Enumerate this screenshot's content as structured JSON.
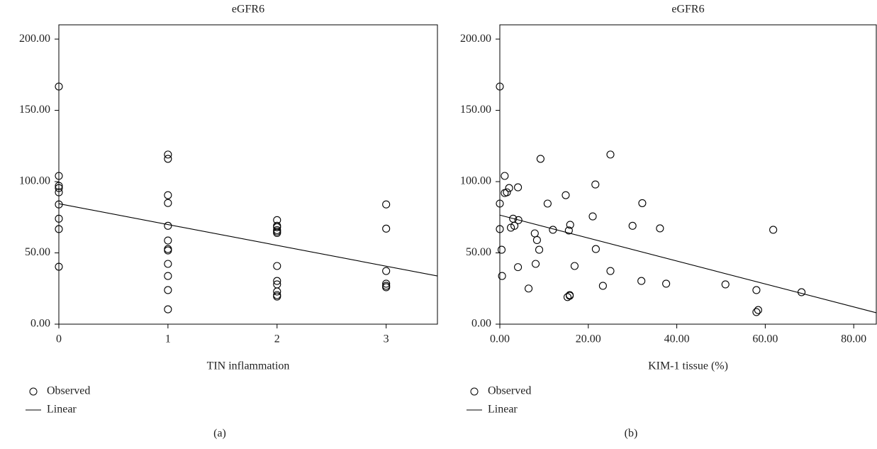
{
  "chart_data": [
    {
      "type": "scatter",
      "title": "eGFR6",
      "x_label": "TIN inflammation",
      "panel_label": "(a)",
      "xlim": [
        0,
        3.47
      ],
      "xticks": [
        0,
        1,
        2,
        3
      ],
      "ylim": [
        0,
        210
      ],
      "yticks": [
        {
          "value": 0,
          "label": "0.00"
        },
        {
          "value": 50,
          "label": "50.00"
        },
        {
          "value": 100,
          "label": "100.00"
        },
        {
          "value": 150,
          "label": "150.00"
        },
        {
          "value": 200,
          "label": "200.00"
        }
      ],
      "series": [
        {
          "name": "Observed",
          "color": "#000000",
          "x": [
            0,
            0,
            0,
            0,
            0,
            0,
            0,
            0,
            0,
            1,
            1,
            1,
            1,
            1,
            1,
            1,
            1,
            1,
            1,
            1,
            1,
            2,
            2,
            2,
            2,
            2,
            2,
            2,
            2,
            2,
            2,
            2,
            2,
            3,
            3,
            3,
            3,
            3,
            3
          ],
          "values": [
            166.7,
            104,
            97,
            95.5,
            92.5,
            84,
            74,
            66.7,
            40.3,
            119,
            116,
            90.5,
            85,
            69,
            58.7,
            52.7,
            51.7,
            42.3,
            33.8,
            23.9,
            10.4,
            73,
            69,
            68,
            66,
            65,
            64,
            40.8,
            30.3,
            27.9,
            22.9,
            20.4,
            19.4,
            84,
            67,
            37.3,
            28.4,
            26.9,
            25.9
          ]
        },
        {
          "name": "Linear",
          "color": "#000000",
          "x": [
            0,
            3.47
          ],
          "values": [
            84.5,
            33.8
          ]
        }
      ]
    },
    {
      "type": "scatter",
      "title": "eGFR6",
      "x_label": "KIM-1 tissue (%)",
      "panel_label": "(b)",
      "xlim": [
        0,
        85.1
      ],
      "xticks": [
        {
          "value": 0,
          "label": "0.00"
        },
        {
          "value": 20,
          "label": "20.00"
        },
        {
          "value": 40,
          "label": "40.00"
        },
        {
          "value": 60,
          "label": "60.00"
        },
        {
          "value": 80,
          "label": "80.00"
        }
      ],
      "ylim": [
        0,
        210
      ],
      "yticks": [
        {
          "value": 0,
          "label": "0.00"
        },
        {
          "value": 50,
          "label": "50.00"
        },
        {
          "value": 100,
          "label": "100.00"
        },
        {
          "value": 150,
          "label": "150.00"
        },
        {
          "value": 200,
          "label": "200.00"
        }
      ],
      "series": [
        {
          "name": "Observed",
          "color": "#000000",
          "x": [
            0,
            0,
            0,
            0.4,
            0.5,
            1.1,
            1.1,
            1.6,
            2.1,
            2.5,
            3,
            3.3,
            4.1,
            4.2,
            4.1,
            6.5,
            7.9,
            8.1,
            8.4,
            8.9,
            9.2,
            10.8,
            12,
            14.9,
            15.3,
            15.6,
            15.8,
            15.9,
            15.8,
            16.9,
            21,
            21.6,
            21.7,
            23.3,
            25,
            25,
            30,
            32,
            32.2,
            36.2,
            37.6,
            51,
            58,
            58.4,
            58,
            61.8,
            68.2
          ],
          "values": [
            166.7,
            84.6,
            66.7,
            52.2,
            33.8,
            104,
            92,
            92.5,
            95.5,
            67.7,
            74,
            69,
            96,
            73,
            40,
            25,
            63.7,
            42.3,
            59,
            52.2,
            116,
            84.6,
            66.2,
            90.5,
            19,
            65.7,
            19.9,
            69.7,
            20.4,
            40.8,
            75.6,
            98,
            52.7,
            26.9,
            119,
            37.3,
            69,
            30.3,
            84.9,
            67.2,
            28.4,
            27.9,
            23.9,
            9.9,
            8.5,
            66.2,
            22.4
          ]
        },
        {
          "name": "Linear",
          "color": "#000000",
          "x": [
            0,
            85.1
          ],
          "values": [
            76.5,
            8
          ]
        }
      ]
    }
  ]
}
